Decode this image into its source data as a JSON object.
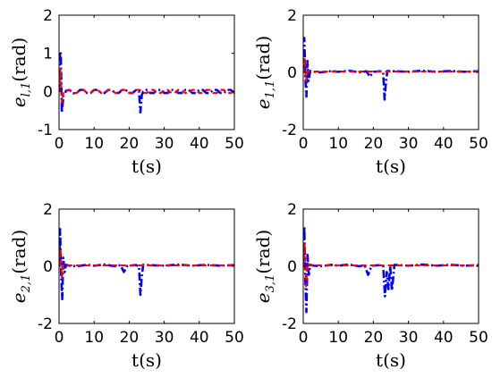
{
  "chart_data": [
    {
      "type": "line",
      "title": "",
      "ylabel": {
        "symbol": "e",
        "subscript": "l,1",
        "unit": "(rad)"
      },
      "xlabel": "t(s)",
      "xlim": [
        0,
        50
      ],
      "ylim": [
        -1,
        2
      ],
      "xticks": [
        0,
        10,
        20,
        30,
        40,
        50
      ],
      "yticks": [
        -1,
        0,
        1,
        2
      ],
      "series": [
        {
          "style": "dash-dot",
          "color": "#0000ff",
          "x": [
            0,
            0.3,
            0.5,
            0.8,
            1.0,
            1.3,
            1.6,
            2,
            3,
            4,
            5,
            6,
            7,
            8,
            9,
            10,
            11,
            12,
            13,
            14,
            15,
            16,
            17,
            18,
            19,
            20,
            21,
            22,
            22.8,
            23.2,
            23.6,
            24,
            25,
            26,
            27,
            28,
            29,
            30,
            31,
            32,
            33,
            34,
            35,
            36,
            37,
            38,
            39,
            40,
            41,
            42,
            43,
            44,
            45,
            46,
            47,
            48,
            49,
            50
          ],
          "y": [
            0,
            1.05,
            1.0,
            -0.55,
            -0.35,
            -0.1,
            -0.08,
            0.02,
            0.04,
            -0.05,
            -0.04,
            0.04,
            0.04,
            -0.04,
            -0.04,
            0.04,
            0.04,
            -0.04,
            -0.04,
            0.04,
            0.04,
            -0.04,
            -0.04,
            0.04,
            0.04,
            -0.04,
            -0.04,
            0.04,
            0.0,
            -0.55,
            -0.1,
            0.0,
            0.04,
            -0.04,
            -0.04,
            0.04,
            0.04,
            -0.04,
            -0.04,
            0.04,
            0.04,
            -0.04,
            -0.04,
            0.04,
            0.04,
            -0.04,
            -0.04,
            0.04,
            0.04,
            -0.04,
            -0.04,
            0.04,
            0.04,
            -0.04,
            -0.04,
            0.04,
            0.04,
            -0.04
          ]
        },
        {
          "style": "dashed",
          "color": "#ff0000",
          "x": [
            0,
            0.4,
            0.8,
            1.2,
            2,
            3,
            4,
            5,
            6,
            7,
            8,
            9,
            10,
            11,
            12,
            13,
            14,
            15,
            16,
            17,
            18,
            19,
            20,
            21,
            22,
            23,
            24,
            25,
            26,
            27,
            28,
            29,
            30,
            31,
            32,
            33,
            34,
            35,
            36,
            37,
            38,
            39,
            40,
            41,
            42,
            43,
            44,
            45,
            46,
            47,
            48,
            49,
            50
          ],
          "y": [
            0,
            0.6,
            -0.3,
            -0.05,
            0.02,
            0.04,
            -0.04,
            -0.04,
            0.04,
            0.04,
            -0.04,
            -0.04,
            0.04,
            0.04,
            -0.04,
            -0.04,
            0.04,
            0.04,
            -0.04,
            -0.04,
            0.04,
            0.04,
            -0.04,
            -0.04,
            0.04,
            0.04,
            -0.04,
            -0.04,
            0.04,
            0.04,
            -0.04,
            -0.04,
            0.04,
            0.04,
            -0.04,
            -0.04,
            0.04,
            0.04,
            -0.04,
            -0.04,
            0.04,
            0.04,
            -0.04,
            -0.04,
            0.04,
            0.04,
            -0.04,
            -0.04,
            0.04,
            0.04,
            -0.04,
            -0.04,
            0.04
          ]
        }
      ]
    },
    {
      "type": "line",
      "title": "",
      "ylabel": {
        "symbol": "e",
        "subscript": "1,1",
        "unit": "(rad)"
      },
      "xlabel": "t(s)",
      "xlim": [
        0,
        50
      ],
      "ylim": [
        -2,
        2
      ],
      "xticks": [
        0,
        10,
        20,
        30,
        40,
        50
      ],
      "yticks": [
        -2,
        0,
        2
      ],
      "series": [
        {
          "style": "dash-dot",
          "color": "#0000ff",
          "x": [
            0,
            0.3,
            0.6,
            0.9,
            1.2,
            1.5,
            2,
            3,
            5,
            8,
            10,
            13,
            16,
            18,
            19,
            20,
            22,
            22.8,
            23.2,
            23.6,
            24,
            26,
            30,
            34,
            38,
            42,
            46,
            50
          ],
          "y": [
            0,
            1.2,
            -0.2,
            -0.85,
            0.4,
            -0.3,
            0.05,
            0.02,
            0.0,
            0.05,
            0.02,
            0.06,
            0.0,
            0.04,
            -0.15,
            0.02,
            0.04,
            0.0,
            -0.95,
            -0.3,
            0.05,
            0.04,
            0.02,
            0.06,
            0.02,
            0.05,
            0.02,
            0.04
          ]
        },
        {
          "style": "dashed",
          "color": "#ff0000",
          "x": [
            0,
            0.4,
            0.8,
            1.2,
            2,
            5,
            10,
            15,
            20,
            25,
            30,
            35,
            40,
            45,
            50
          ],
          "y": [
            0,
            0.5,
            -0.3,
            0.05,
            0.03,
            0.03,
            0.03,
            0.03,
            0.03,
            0.03,
            0.03,
            0.03,
            0.03,
            0.03,
            0.03
          ]
        }
      ]
    },
    {
      "type": "line",
      "title": "",
      "ylabel": {
        "symbol": "e",
        "subscript": "2,1",
        "unit": "(rad)"
      },
      "xlabel": "t(s)",
      "xlim": [
        0,
        50
      ],
      "ylim": [
        -2,
        2
      ],
      "xticks": [
        0,
        10,
        20,
        30,
        40,
        50
      ],
      "yticks": [
        -2,
        0,
        2
      ],
      "series": [
        {
          "style": "dash-dot",
          "color": "#0000ff",
          "x": [
            0,
            0.3,
            0.6,
            0.9,
            1.2,
            1.6,
            2,
            3,
            5,
            8,
            10,
            13,
            16,
            17.5,
            18.5,
            19.5,
            22,
            22.8,
            23.2,
            23.6,
            24,
            26,
            30,
            34,
            38,
            42,
            46,
            50
          ],
          "y": [
            0,
            1.3,
            -0.3,
            -1.15,
            0.3,
            -0.2,
            0.05,
            0.02,
            0.0,
            0.05,
            0.02,
            0.06,
            0.0,
            0.04,
            -0.2,
            0.02,
            0.04,
            0.0,
            -1.0,
            -0.35,
            0.05,
            0.04,
            0.02,
            0.06,
            0.02,
            0.05,
            0.02,
            0.04
          ]
        },
        {
          "style": "dashed",
          "color": "#ff0000",
          "x": [
            0,
            0.4,
            0.8,
            1.2,
            2,
            5,
            10,
            15,
            20,
            25,
            30,
            35,
            40,
            45,
            50
          ],
          "y": [
            0,
            0.6,
            -0.4,
            0.05,
            0.03,
            0.03,
            0.03,
            0.03,
            0.03,
            0.03,
            0.03,
            0.03,
            0.03,
            0.03,
            0.03
          ]
        }
      ]
    },
    {
      "type": "line",
      "title": "",
      "ylabel": {
        "symbol": "e",
        "subscript": "3,1",
        "unit": "(rad)"
      },
      "xlabel": "t(s)",
      "xlim": [
        0,
        50
      ],
      "ylim": [
        -2,
        2
      ],
      "xticks": [
        0,
        10,
        20,
        30,
        40,
        50
      ],
      "yticks": [
        -2,
        0,
        2
      ],
      "series": [
        {
          "style": "dash-dot",
          "color": "#0000ff",
          "x": [
            0,
            0.3,
            0.6,
            0.9,
            1.2,
            1.6,
            2,
            3,
            5,
            8,
            10,
            13,
            16,
            17.5,
            18.5,
            19.5,
            22,
            22.8,
            23.3,
            23.8,
            24.3,
            24.8,
            25.3,
            26,
            30,
            34,
            38,
            42,
            46,
            50
          ],
          "y": [
            0,
            1.4,
            -0.5,
            -1.6,
            0.4,
            -0.3,
            0.05,
            0.02,
            0.0,
            0.05,
            0.02,
            0.06,
            0.0,
            0.04,
            -0.3,
            0.02,
            0.04,
            0.0,
            -1.05,
            -0.2,
            -0.8,
            0.0,
            -0.85,
            0.05,
            0.02,
            0.06,
            0.02,
            0.05,
            0.02,
            0.04
          ]
        },
        {
          "style": "dashed",
          "color": "#ff0000",
          "x": [
            0,
            0.4,
            0.8,
            1.2,
            2,
            5,
            10,
            15,
            20,
            25,
            30,
            35,
            40,
            45,
            50
          ],
          "y": [
            0,
            0.8,
            -0.7,
            0.1,
            0.03,
            0.03,
            0.03,
            0.03,
            0.03,
            0.03,
            0.03,
            0.03,
            0.03,
            0.03,
            0.03
          ]
        }
      ]
    }
  ]
}
